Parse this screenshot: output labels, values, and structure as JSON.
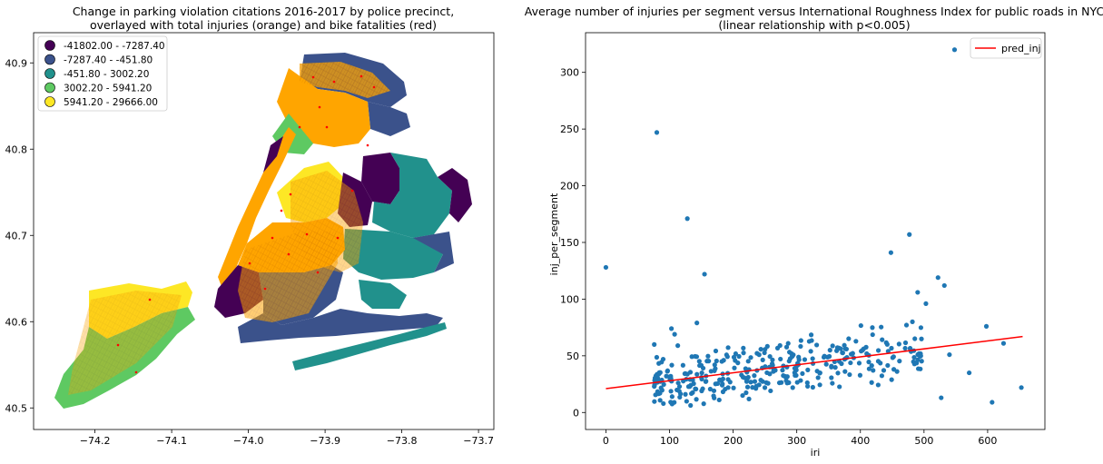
{
  "chart_data": [
    {
      "type": "choropleth-map",
      "title_lines": [
        "Change in parking violation citations 2016-2017 by police precinct,",
        "overlayed with total injuries (orange) and bike fatalities (red)"
      ],
      "xlim": [
        -74.28,
        -73.68
      ],
      "ylim": [
        40.475,
        40.935
      ],
      "xticks": [
        -74.2,
        -74.1,
        -74.0,
        -73.9,
        -73.8,
        -73.7
      ],
      "xtick_labels": [
        "−74.2",
        "−74.1",
        "−74.0",
        "−73.9",
        "−73.8",
        "−73.7"
      ],
      "yticks": [
        40.5,
        40.6,
        40.7,
        40.8,
        40.9
      ],
      "ytick_labels": [
        "40.5",
        "40.6",
        "40.7",
        "40.8",
        "40.9"
      ],
      "legend_position": "upper-left",
      "legend": [
        {
          "label": "-41802.00 - -7287.40",
          "color": "#440154"
        },
        {
          "label": "-7287.40 - -451.80",
          "color": "#3b528b"
        },
        {
          "label": "-451.80 - 3002.20",
          "color": "#21918c"
        },
        {
          "label": "3002.20 - 5941.20",
          "color": "#5ec962"
        },
        {
          "label": "5941.20 - 29666.00",
          "color": "#fde725"
        }
      ],
      "overlay_colors": {
        "injuries": "#ffa500",
        "fatalities": "#ff0000"
      }
    },
    {
      "type": "scatter",
      "title_lines": [
        "Average number of injuries per segment versus International Roughness Index for public roads in NYC",
        "(linear relationship with p<0.005)"
      ],
      "xlabel": "iri",
      "ylabel": "inj_per_segment",
      "xlim": [
        -32,
        690
      ],
      "ylim": [
        -15,
        335
      ],
      "xticks": [
        0,
        100,
        200,
        300,
        400,
        500,
        600
      ],
      "yticks": [
        0,
        50,
        100,
        150,
        200,
        250,
        300
      ],
      "point_color": "#1f77b4",
      "line_color": "#ff0000",
      "legend_position": "upper-right",
      "legend_label": "pred_inj",
      "fit_line": {
        "x": [
          0,
          655
        ],
        "y": [
          21,
          67
        ]
      },
      "outliers": [
        [
          0,
          128
        ],
        [
          80,
          247
        ],
        [
          128,
          171
        ],
        [
          155,
          122
        ],
        [
          548,
          320
        ],
        [
          477,
          157
        ],
        [
          448,
          141
        ],
        [
          522,
          119
        ],
        [
          532,
          112
        ],
        [
          503,
          96
        ],
        [
          490,
          106
        ],
        [
          598,
          76
        ],
        [
          571,
          35
        ],
        [
          607,
          9
        ],
        [
          653,
          22
        ],
        [
          625,
          61
        ],
        [
          540,
          51
        ],
        [
          527,
          13
        ],
        [
          76,
          60
        ],
        [
          90,
          47
        ],
        [
          103,
          74
        ],
        [
          108,
          69
        ],
        [
          113,
          59
        ],
        [
          143,
          79
        ]
      ],
      "trend": {
        "slope": 0.07,
        "intercept": 21,
        "x_range": [
          75,
          500
        ]
      }
    }
  ]
}
